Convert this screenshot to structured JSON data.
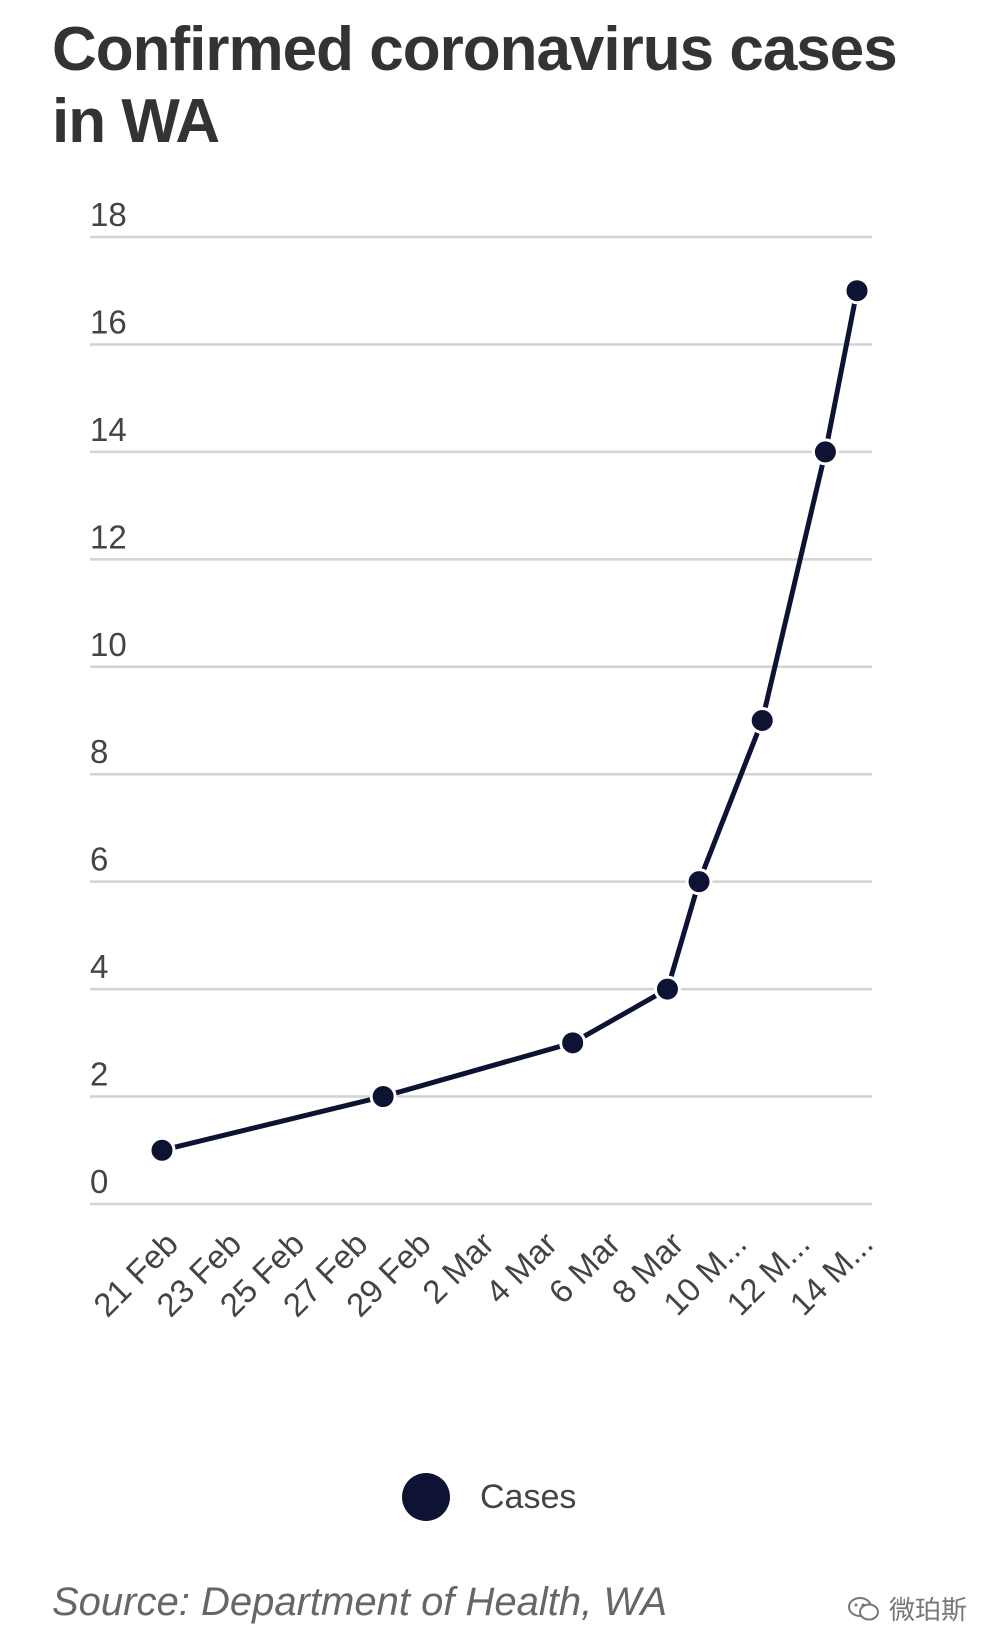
{
  "title": "Confirmed coronavirus cases in WA",
  "source": "Source: Department of Health, WA",
  "watermark": "微珀斯",
  "legend": {
    "label": "Cases",
    "icon": "filled-circle-icon"
  },
  "chart_data": {
    "type": "line",
    "title": "Confirmed coronavirus cases in WA",
    "xlabel": "",
    "ylabel": "",
    "categories": [
      "21 Feb",
      "23 Feb",
      "25 Feb",
      "27 Feb",
      "29 Feb",
      "2 Mar",
      "4 Mar",
      "6 Mar",
      "8 Mar",
      "10 M...",
      "12 M...",
      "14 M..."
    ],
    "yticks": [
      "0",
      "2",
      "4",
      "6",
      "8",
      "10",
      "12",
      "14",
      "16",
      "18"
    ],
    "ylim": [
      0,
      18
    ],
    "xlim_days": [
      0,
      22
    ],
    "grid": true,
    "legend_position": "bottom",
    "color": "#0e1233",
    "series": [
      {
        "name": "Cases",
        "points": [
          {
            "day": 0,
            "value": 1
          },
          {
            "day": 7,
            "value": 2
          },
          {
            "day": 13,
            "value": 3
          },
          {
            "day": 16,
            "value": 4
          },
          {
            "day": 17,
            "value": 6
          },
          {
            "day": 19,
            "value": 9
          },
          {
            "day": 21,
            "value": 14
          },
          {
            "day": 22,
            "value": 17
          }
        ]
      }
    ]
  }
}
